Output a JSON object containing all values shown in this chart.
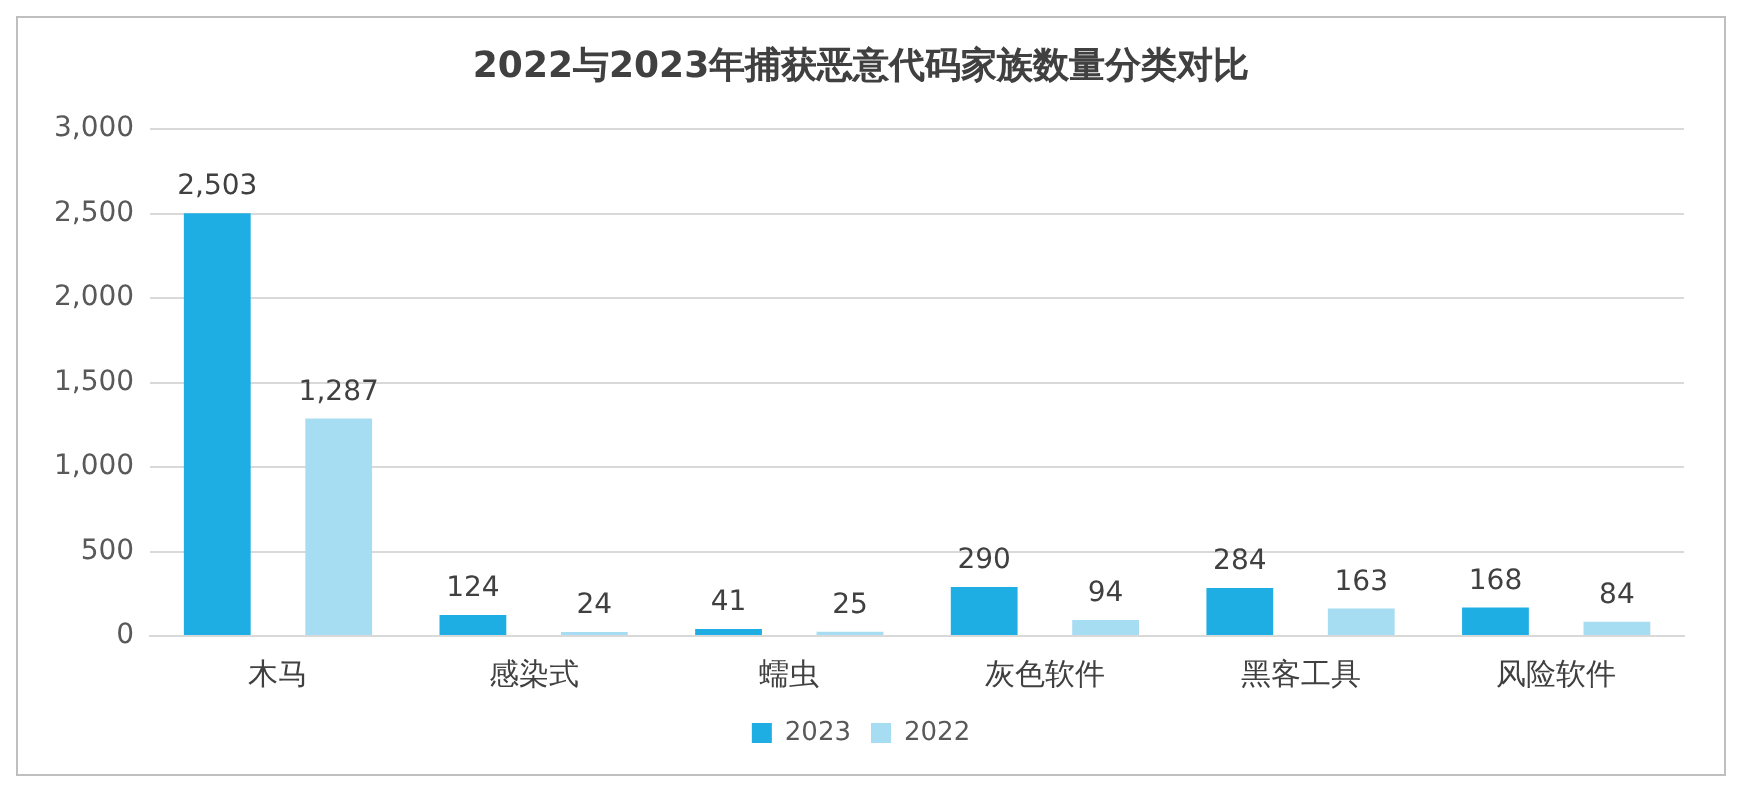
{
  "chart_data": {
    "type": "bar",
    "title": "2022与2023年捕获恶意代码家族数量分类对比",
    "categories": [
      "木马",
      "感染式",
      "蠕虫",
      "灰色软件",
      "黑客工具",
      "风险软件"
    ],
    "series": [
      {
        "name": "2023",
        "color": "#1eaee3",
        "values": [
          2503,
          124,
          41,
          290,
          284,
          168
        ],
        "value_labels": [
          "2,503",
          "124",
          "41",
          "290",
          "284",
          "168"
        ]
      },
      {
        "name": "2022",
        "color": "#a7ddf2",
        "values": [
          1287,
          24,
          25,
          94,
          163,
          84
        ],
        "value_labels": [
          "1,287",
          "24",
          "25",
          "94",
          "163",
          "84"
        ]
      }
    ],
    "ylim": [
      0,
      3000
    ],
    "yticks": [
      {
        "value": 0,
        "label": "0"
      },
      {
        "value": 500,
        "label": "500"
      },
      {
        "value": 1000,
        "label": "1,000"
      },
      {
        "value": 1500,
        "label": "1,500"
      },
      {
        "value": 2000,
        "label": "2,000"
      },
      {
        "value": 2500,
        "label": "2,500"
      },
      {
        "value": 3000,
        "label": "3,000"
      }
    ],
    "grid": "y",
    "legend": "bottom"
  }
}
